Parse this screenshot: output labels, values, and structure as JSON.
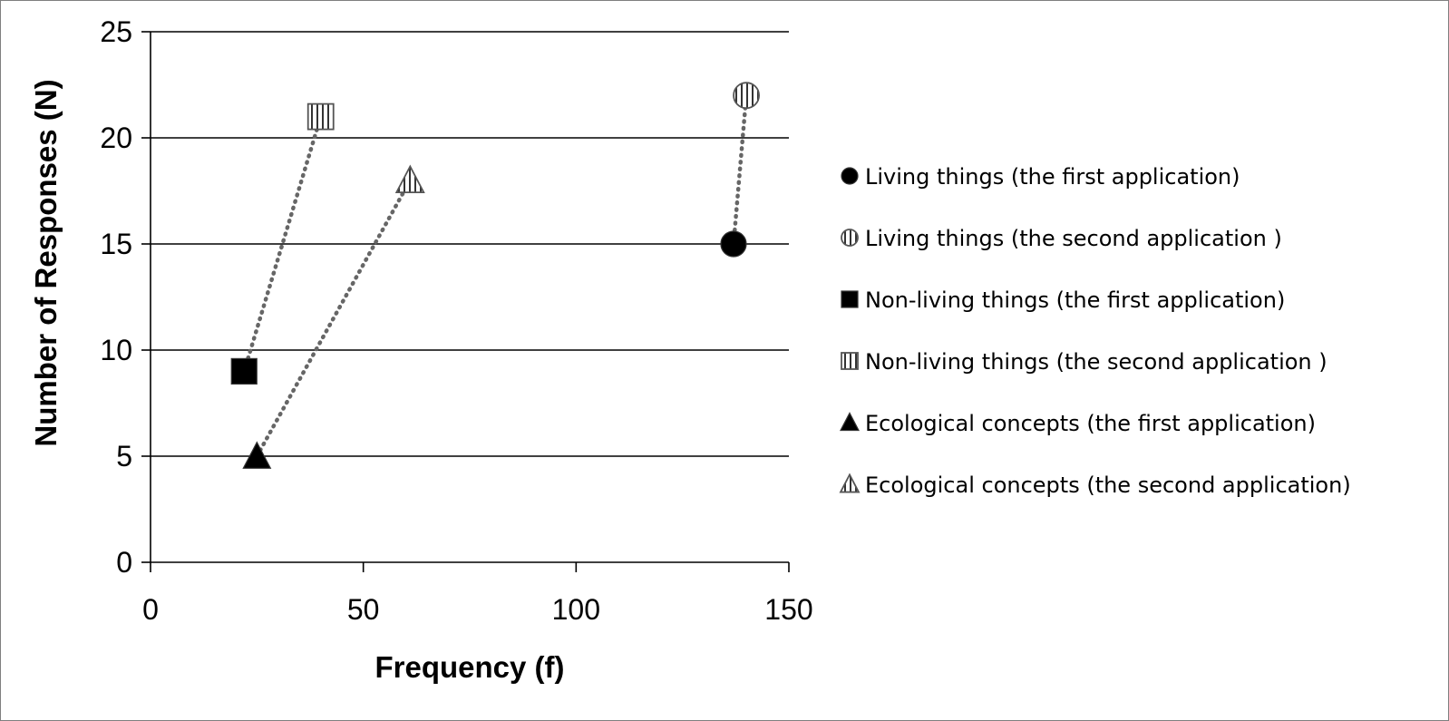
{
  "chart_data": {
    "type": "scatter",
    "xlabel": "Frequency (f)",
    "ylabel": "Number of Responses (N)",
    "xlim": [
      0,
      150
    ],
    "ylim": [
      0,
      25
    ],
    "xticks": [
      "0",
      "50",
      "100",
      "150"
    ],
    "yticks": [
      "0",
      "5",
      "10",
      "15",
      "20",
      "25"
    ],
    "grid": "horizontal",
    "legend_position": "right",
    "series": [
      {
        "name": "Living things (the first application)",
        "marker": "circle-filled",
        "x": 137,
        "y": 15
      },
      {
        "name": "Living things (the second application )",
        "marker": "circle-striped",
        "x": 140,
        "y": 22
      },
      {
        "name": "Non-living things (the first application)",
        "marker": "square-filled",
        "x": 22,
        "y": 9
      },
      {
        "name": "Non-living things (the second application )",
        "marker": "square-striped",
        "x": 40,
        "y": 21
      },
      {
        "name": "Ecological concepts (the first application)",
        "marker": "triangle-filled",
        "x": 25,
        "y": 5
      },
      {
        "name": "Ecological concepts (the second application)",
        "marker": "triangle-striped",
        "x": 61,
        "y": 18
      }
    ],
    "connectors": [
      [
        0,
        1
      ],
      [
        2,
        3
      ],
      [
        4,
        5
      ]
    ],
    "colors": {
      "filled": "#000000",
      "striped_outline": "#555555",
      "connector": "#666666",
      "grid": "#000000"
    }
  }
}
